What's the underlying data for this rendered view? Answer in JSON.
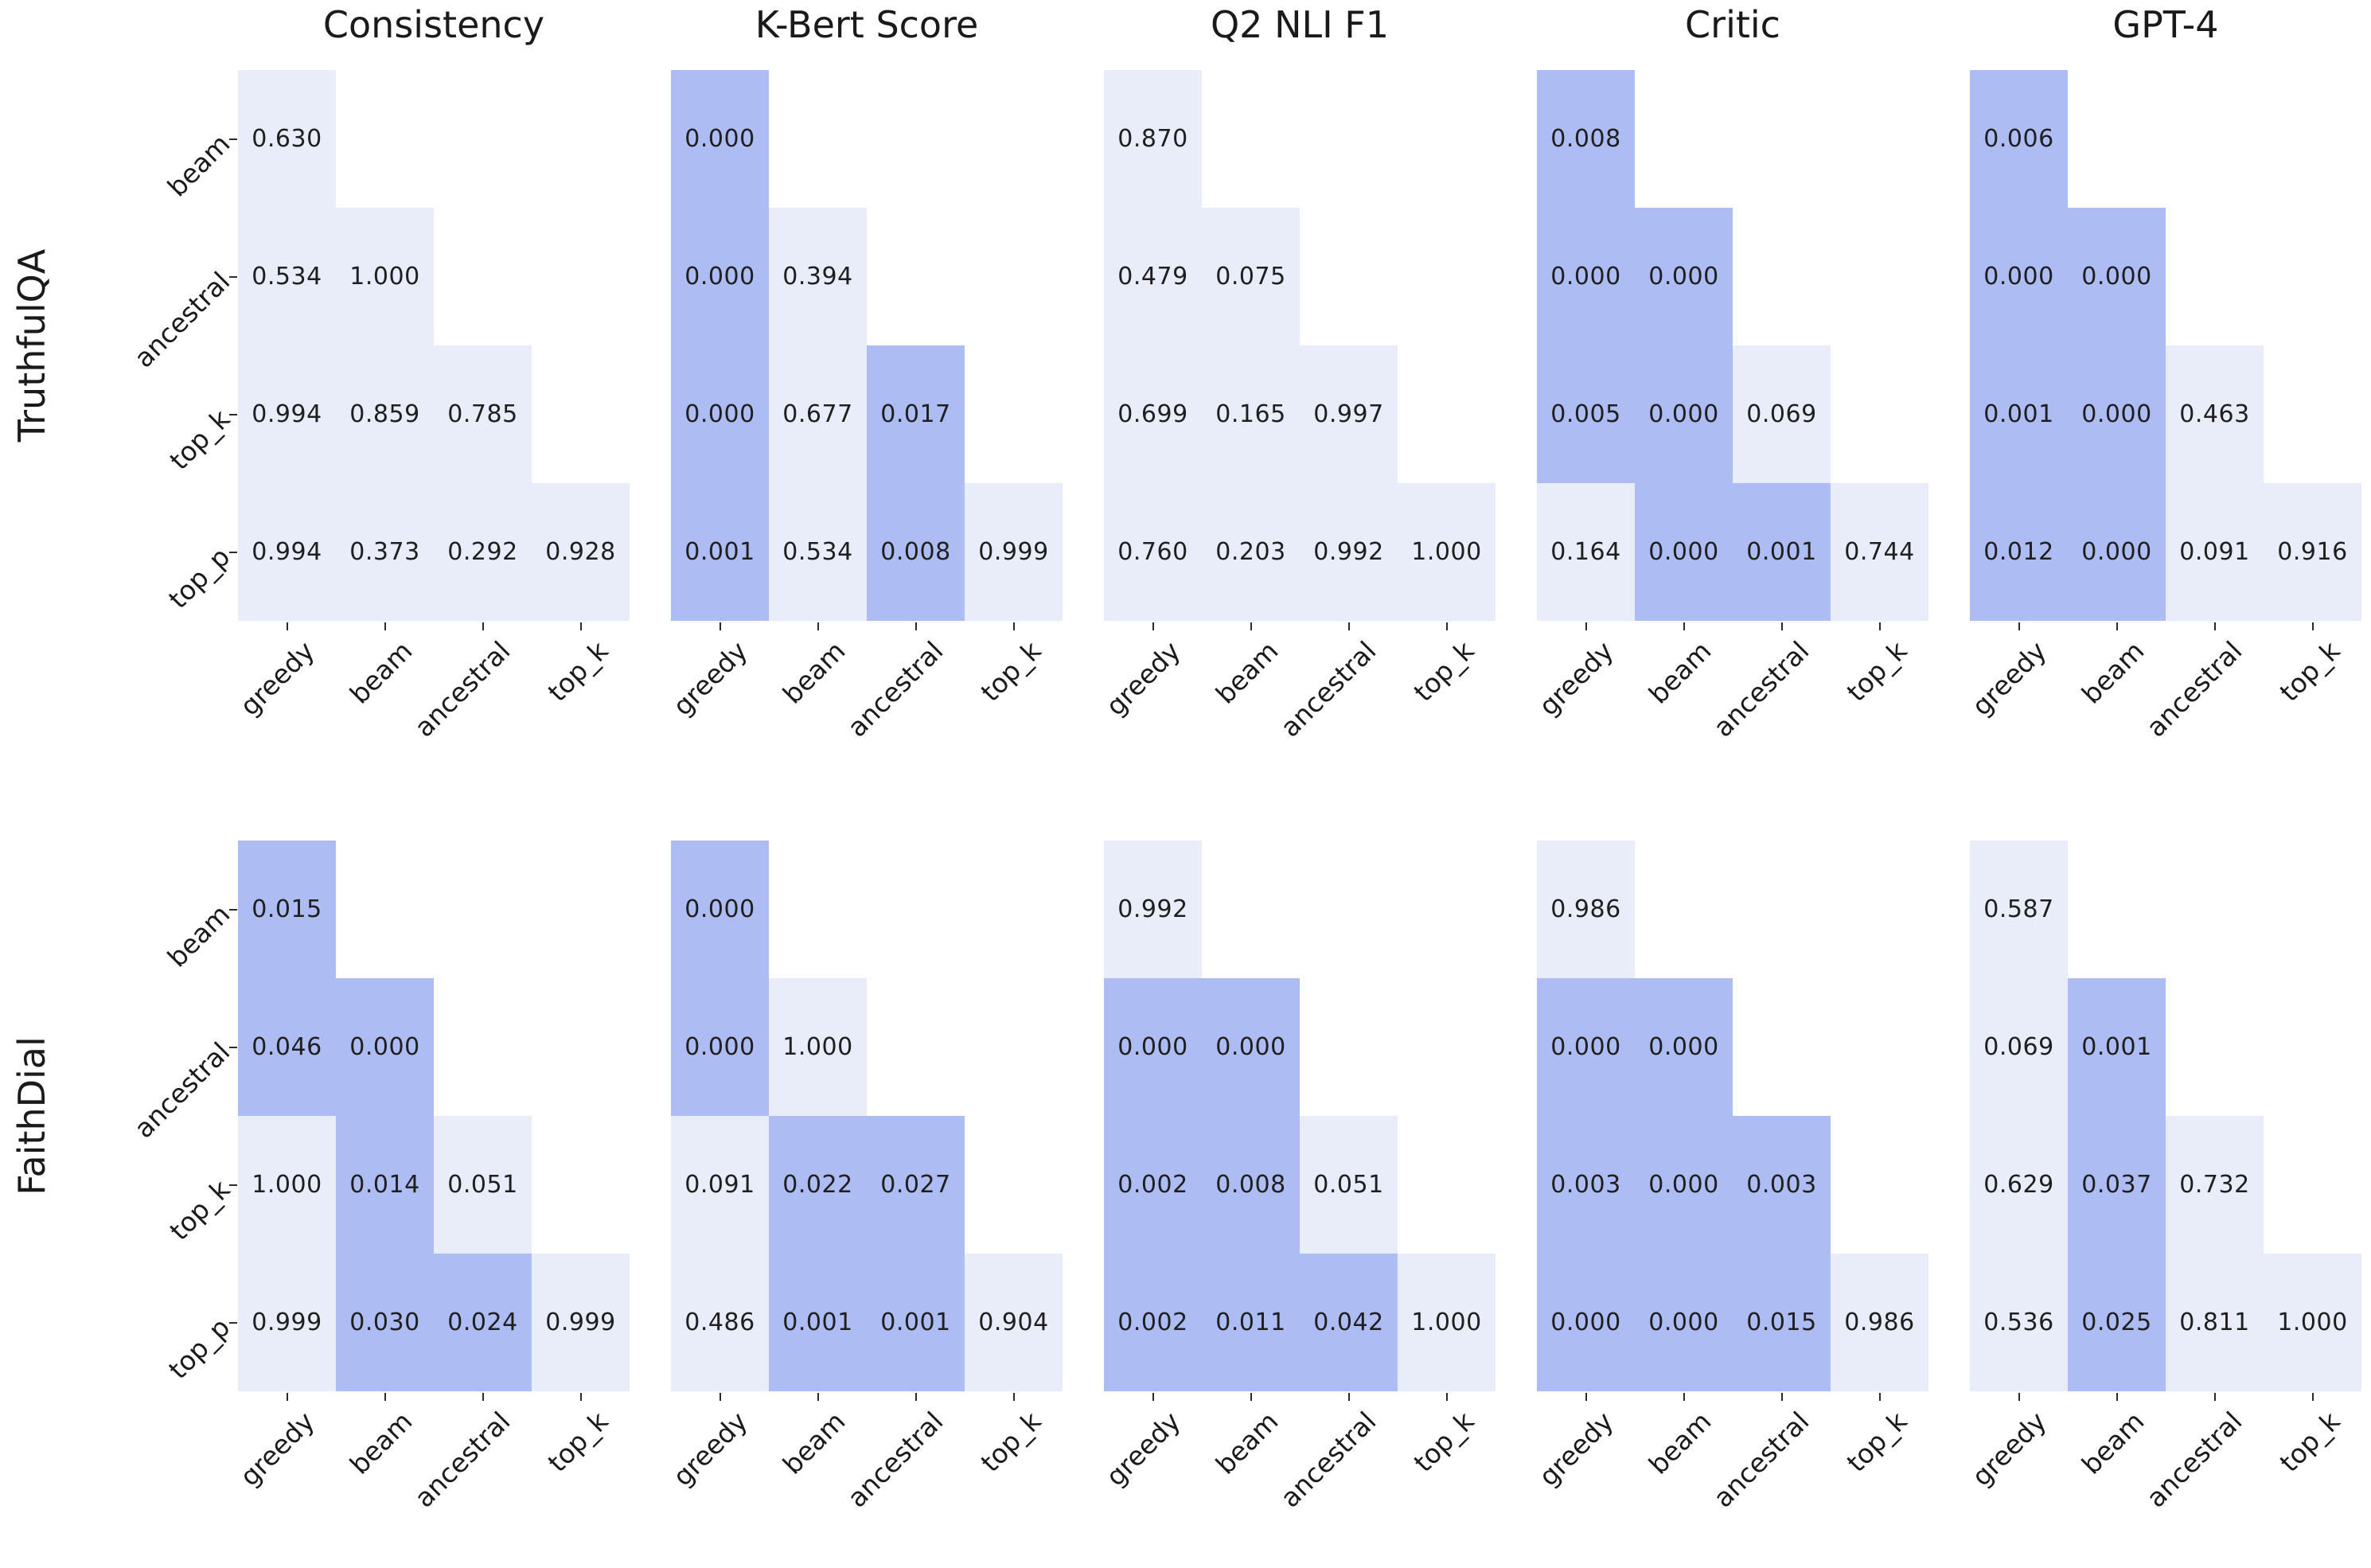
{
  "figure": {
    "row_labels": [
      "TruthfulQA",
      "FaithDial"
    ],
    "col_titles": [
      "Consistency",
      "K-Bert Score",
      "Q2 NLI F1",
      "Critic",
      "GPT-4"
    ],
    "x_ticklabels": [
      "greedy",
      "beam",
      "ancestral",
      "top_k"
    ],
    "y_ticklabels": [
      "beam",
      "ancestral",
      "top_k",
      "top_p"
    ],
    "significance_threshold": 0.05,
    "colors": {
      "significant_cell": "#aebcf4",
      "not_significant_cell": "#e9edfa",
      "value_text": "#1f1f1f",
      "background": "#ffffff"
    }
  },
  "chart_data": [
    {
      "type": "heatmap",
      "dataset": "TruthfulQA",
      "metric": "Consistency",
      "rows": [
        "beam",
        "ancestral",
        "top_k",
        "top_p"
      ],
      "cols": [
        "greedy",
        "beam",
        "ancestral",
        "top_k"
      ],
      "values": [
        [
          0.63,
          null,
          null,
          null
        ],
        [
          0.534,
          1.0,
          null,
          null
        ],
        [
          0.994,
          0.859,
          0.785,
          null
        ],
        [
          0.994,
          0.373,
          0.292,
          0.928
        ]
      ]
    },
    {
      "type": "heatmap",
      "dataset": "TruthfulQA",
      "metric": "K-Bert Score",
      "rows": [
        "beam",
        "ancestral",
        "top_k",
        "top_p"
      ],
      "cols": [
        "greedy",
        "beam",
        "ancestral",
        "top_k"
      ],
      "values": [
        [
          0.0,
          null,
          null,
          null
        ],
        [
          0.0,
          0.394,
          null,
          null
        ],
        [
          0.0,
          0.677,
          0.017,
          null
        ],
        [
          0.001,
          0.534,
          0.008,
          0.999
        ]
      ]
    },
    {
      "type": "heatmap",
      "dataset": "TruthfulQA",
      "metric": "Q2 NLI F1",
      "rows": [
        "beam",
        "ancestral",
        "top_k",
        "top_p"
      ],
      "cols": [
        "greedy",
        "beam",
        "ancestral",
        "top_k"
      ],
      "values": [
        [
          0.87,
          null,
          null,
          null
        ],
        [
          0.479,
          0.075,
          null,
          null
        ],
        [
          0.699,
          0.165,
          0.997,
          null
        ],
        [
          0.76,
          0.203,
          0.992,
          1.0
        ]
      ]
    },
    {
      "type": "heatmap",
      "dataset": "TruthfulQA",
      "metric": "Critic",
      "rows": [
        "beam",
        "ancestral",
        "top_k",
        "top_p"
      ],
      "cols": [
        "greedy",
        "beam",
        "ancestral",
        "top_k"
      ],
      "values": [
        [
          0.008,
          null,
          null,
          null
        ],
        [
          0.0,
          0.0,
          null,
          null
        ],
        [
          0.005,
          0.0,
          0.069,
          null
        ],
        [
          0.164,
          0.0,
          0.001,
          0.744
        ]
      ]
    },
    {
      "type": "heatmap",
      "dataset": "TruthfulQA",
      "metric": "GPT-4",
      "rows": [
        "beam",
        "ancestral",
        "top_k",
        "top_p"
      ],
      "cols": [
        "greedy",
        "beam",
        "ancestral",
        "top_k"
      ],
      "values": [
        [
          0.006,
          null,
          null,
          null
        ],
        [
          0.0,
          0.0,
          null,
          null
        ],
        [
          0.001,
          0.0,
          0.463,
          null
        ],
        [
          0.012,
          0.0,
          0.091,
          0.916
        ]
      ]
    },
    {
      "type": "heatmap",
      "dataset": "FaithDial",
      "metric": "Consistency",
      "rows": [
        "beam",
        "ancestral",
        "top_k",
        "top_p"
      ],
      "cols": [
        "greedy",
        "beam",
        "ancestral",
        "top_k"
      ],
      "values": [
        [
          0.015,
          null,
          null,
          null
        ],
        [
          0.046,
          0.0,
          null,
          null
        ],
        [
          1.0,
          0.014,
          0.051,
          null
        ],
        [
          0.999,
          0.03,
          0.024,
          0.999
        ]
      ]
    },
    {
      "type": "heatmap",
      "dataset": "FaithDial",
      "metric": "K-Bert Score",
      "rows": [
        "beam",
        "ancestral",
        "top_k",
        "top_p"
      ],
      "cols": [
        "greedy",
        "beam",
        "ancestral",
        "top_k"
      ],
      "values": [
        [
          0.0,
          null,
          null,
          null
        ],
        [
          0.0,
          1.0,
          null,
          null
        ],
        [
          0.091,
          0.022,
          0.027,
          null
        ],
        [
          0.486,
          0.001,
          0.001,
          0.904
        ]
      ]
    },
    {
      "type": "heatmap",
      "dataset": "FaithDial",
      "metric": "Q2 NLI F1",
      "rows": [
        "beam",
        "ancestral",
        "top_k",
        "top_p"
      ],
      "cols": [
        "greedy",
        "beam",
        "ancestral",
        "top_k"
      ],
      "values": [
        [
          0.992,
          null,
          null,
          null
        ],
        [
          0.0,
          0.0,
          null,
          null
        ],
        [
          0.002,
          0.008,
          0.051,
          null
        ],
        [
          0.002,
          0.011,
          0.042,
          1.0
        ]
      ]
    },
    {
      "type": "heatmap",
      "dataset": "FaithDial",
      "metric": "Critic",
      "rows": [
        "beam",
        "ancestral",
        "top_k",
        "top_p"
      ],
      "cols": [
        "greedy",
        "beam",
        "ancestral",
        "top_k"
      ],
      "values": [
        [
          0.986,
          null,
          null,
          null
        ],
        [
          0.0,
          0.0,
          null,
          null
        ],
        [
          0.003,
          0.0,
          0.003,
          null
        ],
        [
          0.0,
          0.0,
          0.015,
          0.986
        ]
      ]
    },
    {
      "type": "heatmap",
      "dataset": "FaithDial",
      "metric": "GPT-4",
      "rows": [
        "beam",
        "ancestral",
        "top_k",
        "top_p"
      ],
      "cols": [
        "greedy",
        "beam",
        "ancestral",
        "top_k"
      ],
      "values": [
        [
          0.587,
          null,
          null,
          null
        ],
        [
          0.069,
          0.001,
          null,
          null
        ],
        [
          0.629,
          0.037,
          0.732,
          null
        ],
        [
          0.536,
          0.025,
          0.811,
          1.0
        ]
      ]
    }
  ]
}
